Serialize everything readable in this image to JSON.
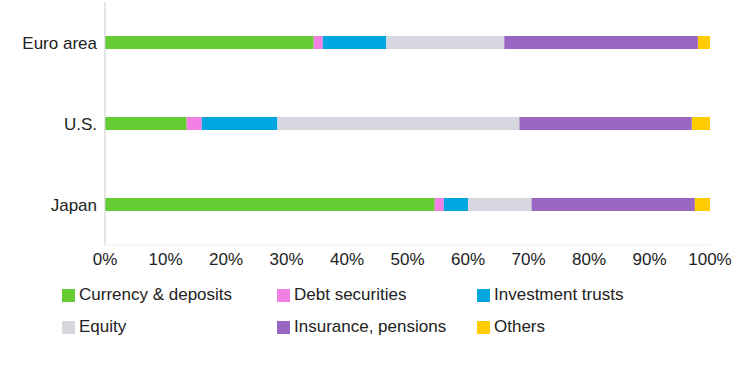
{
  "chart_data": {
    "type": "bar",
    "orientation": "horizontal",
    "stacked": true,
    "grid": false,
    "legend": "bottom",
    "categories": [
      "Euro area",
      "U.S.",
      "Japan"
    ],
    "series": [
      {
        "name": "Currency & deposits",
        "color": "#66cc33",
        "values": [
          34.5,
          13.5,
          54.5
        ]
      },
      {
        "name": "Debt securities",
        "color": "#f27fe3",
        "values": [
          1.5,
          2.5,
          1.5
        ]
      },
      {
        "name": "Investment trusts",
        "color": "#00a6e0",
        "values": [
          10.5,
          12.5,
          4
        ]
      },
      {
        "name": "Equity",
        "color": "#d7d7e0",
        "values": [
          19.5,
          40,
          10.5
        ]
      },
      {
        "name": "Insurance, pensions",
        "color": "#9966c2",
        "values": [
          32,
          28.5,
          27
        ]
      },
      {
        "name": "Others",
        "color": "#ffcc00",
        "values": [
          2,
          3,
          2.5
        ]
      }
    ],
    "xlim": [
      0,
      100
    ],
    "xticks": [
      {
        "value": 0,
        "label": "0%"
      },
      {
        "value": 10,
        "label": "10%"
      },
      {
        "value": 20,
        "label": "20%"
      },
      {
        "value": 30,
        "label": "30%"
      },
      {
        "value": 40,
        "label": "40%"
      },
      {
        "value": 50,
        "label": "50%"
      },
      {
        "value": 60,
        "label": "60%"
      },
      {
        "value": 70,
        "label": "70%"
      },
      {
        "value": 80,
        "label": "80%"
      },
      {
        "value": 90,
        "label": "90%"
      },
      {
        "value": 100,
        "label": "100%"
      }
    ]
  }
}
